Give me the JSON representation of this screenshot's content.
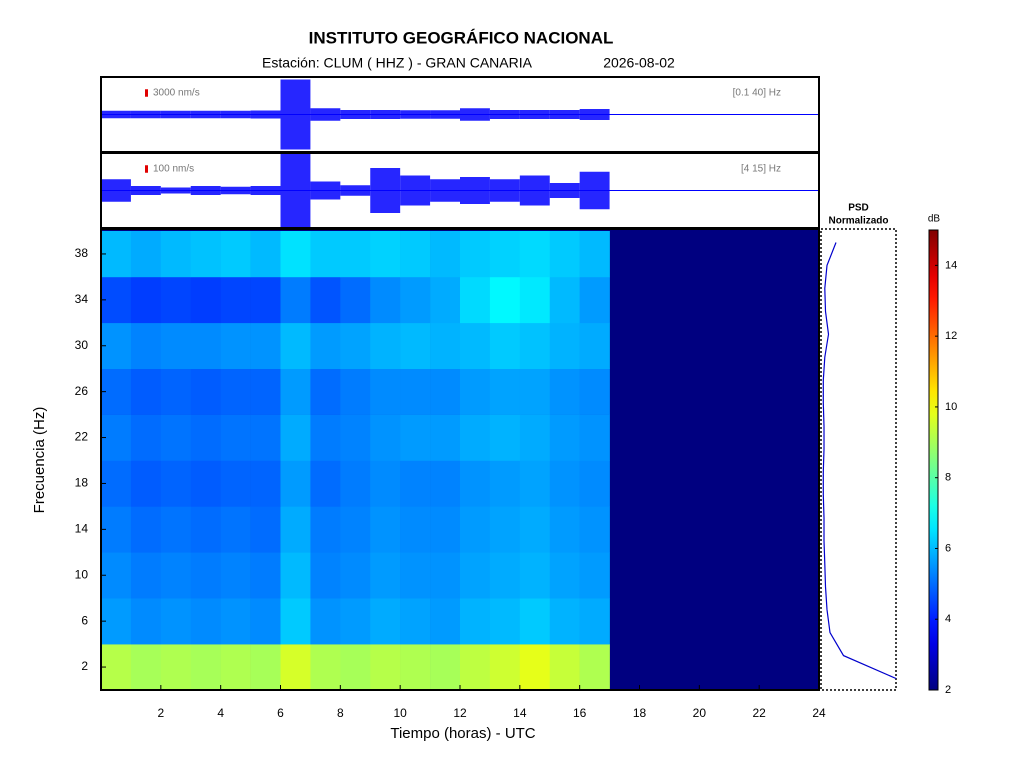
{
  "title": "INSTITUTO GEOGRÁFICO NACIONAL",
  "subtitle": "Estación:  CLUM ( HHZ ) - GRAN CANARIA",
  "date": "2026-08-02",
  "chart_data": [
    {
      "type": "seismogram",
      "scale": {
        "value": 3000,
        "label": "3000 nm/s"
      },
      "band": "[0.1 40] Hz",
      "color": "#0000ff",
      "xlim": [
        0,
        24
      ],
      "ylim": [
        -15000,
        15000
      ],
      "x": [
        0.5,
        1.5,
        2.5,
        3.5,
        4.5,
        5.5,
        6.5,
        7.5,
        8.5,
        9.5,
        10.5,
        11.5,
        12.5,
        13.5,
        14.5,
        15.5,
        16.5,
        17.5,
        18.5,
        19.5,
        20.5,
        21.5,
        22.5,
        23.5
      ],
      "values": [
        1500,
        1500,
        1500,
        1500,
        1500,
        1600,
        14000,
        2500,
        1800,
        1800,
        1700,
        1700,
        2500,
        1800,
        1800,
        1800,
        2200,
        null,
        null,
        null,
        null,
        null,
        null,
        null
      ]
    },
    {
      "type": "seismogram",
      "scale": {
        "value": 100,
        "label": "100 nm/s"
      },
      "band": "[4 15] Hz",
      "color": "#0000ff",
      "xlim": [
        0,
        24
      ],
      "ylim": [
        -500,
        500
      ],
      "x": [
        0.5,
        1.5,
        2.5,
        3.5,
        4.5,
        5.5,
        6.5,
        7.5,
        8.5,
        9.5,
        10.5,
        11.5,
        12.5,
        13.5,
        14.5,
        15.5,
        16.5,
        17.5,
        18.5,
        19.5,
        20.5,
        21.5,
        22.5,
        23.5
      ],
      "values": [
        150,
        60,
        40,
        60,
        50,
        60,
        500,
        120,
        70,
        300,
        200,
        150,
        180,
        150,
        200,
        100,
        250,
        null,
        null,
        null,
        null,
        null,
        null,
        null
      ]
    },
    {
      "type": "heatmap",
      "colormap": "jet",
      "xlabel": "Tiempo (horas) - UTC",
      "ylabel": "Frecuencia  (Hz)",
      "xlim": [
        0,
        24
      ],
      "ylim": [
        0,
        40
      ],
      "xticks": [
        2,
        4,
        6,
        8,
        10,
        12,
        14,
        16,
        18,
        20,
        22,
        24
      ],
      "yticks": [
        2,
        6,
        10,
        14,
        18,
        22,
        26,
        30,
        34,
        38
      ],
      "zlim": [
        2,
        15
      ],
      "zticks": [
        2,
        4,
        6,
        8,
        10,
        12,
        14
      ],
      "zlabel": "dB",
      "x": [
        0.5,
        1.5,
        2.5,
        3.5,
        4.5,
        5.5,
        6.5,
        7.5,
        8.5,
        9.5,
        10.5,
        11.5,
        12.5,
        13.5,
        14.5,
        15.5,
        16.5,
        17.5,
        18.5,
        19.5,
        20.5,
        21.5,
        22.5,
        23.5
      ],
      "y": [
        2,
        6,
        10,
        14,
        18,
        22,
        26,
        30,
        34,
        38
      ],
      "values": [
        [
          9.2,
          9.0,
          9.1,
          9.0,
          9.1,
          9.0,
          9.6,
          9.1,
          9.0,
          9.2,
          9.1,
          9.0,
          9.3,
          9.5,
          9.8,
          9.4,
          9.1,
          null,
          null,
          null,
          null,
          null,
          null,
          null
        ],
        [
          5.6,
          5.4,
          5.5,
          5.4,
          5.5,
          5.4,
          6.2,
          5.5,
          5.6,
          5.8,
          5.7,
          5.6,
          5.9,
          6.0,
          6.2,
          5.9,
          5.8,
          null,
          null,
          null,
          null,
          null,
          null,
          null
        ],
        [
          5.4,
          5.2,
          5.3,
          5.2,
          5.3,
          5.2,
          6.0,
          5.3,
          5.4,
          5.6,
          5.5,
          5.5,
          5.7,
          5.8,
          5.9,
          5.7,
          5.6,
          null,
          null,
          null,
          null,
          null,
          null,
          null
        ],
        [
          5.2,
          5.0,
          5.1,
          5.0,
          5.1,
          5.0,
          5.8,
          5.2,
          5.3,
          5.5,
          5.4,
          5.4,
          5.6,
          5.7,
          5.8,
          5.6,
          5.5,
          null,
          null,
          null,
          null,
          null,
          null,
          null
        ],
        [
          5.0,
          4.8,
          4.9,
          4.8,
          4.9,
          4.9,
          5.6,
          5.0,
          5.2,
          5.4,
          5.3,
          5.3,
          5.5,
          5.6,
          5.7,
          5.5,
          5.4,
          null,
          null,
          null,
          null,
          null,
          null,
          null
        ],
        [
          5.2,
          5.0,
          5.1,
          5.0,
          5.1,
          5.1,
          5.8,
          5.2,
          5.3,
          5.5,
          5.6,
          5.6,
          5.8,
          5.9,
          5.8,
          5.6,
          5.5,
          null,
          null,
          null,
          null,
          null,
          null,
          null
        ],
        [
          5.0,
          4.8,
          4.9,
          4.8,
          4.9,
          4.9,
          5.6,
          5.0,
          5.2,
          5.4,
          5.4,
          5.4,
          5.6,
          5.7,
          5.7,
          5.5,
          5.4,
          null,
          null,
          null,
          null,
          null,
          null,
          null
        ],
        [
          5.5,
          5.3,
          5.4,
          5.4,
          5.5,
          5.5,
          6.0,
          5.6,
          5.7,
          5.9,
          6.0,
          5.9,
          6.0,
          6.2,
          6.1,
          5.9,
          5.8,
          null,
          null,
          null,
          null,
          null,
          null,
          null
        ],
        [
          4.6,
          4.4,
          4.5,
          4.4,
          4.5,
          4.5,
          5.2,
          4.7,
          5.0,
          5.4,
          5.6,
          5.8,
          6.4,
          6.8,
          6.6,
          6.0,
          5.6,
          null,
          null,
          null,
          null,
          null,
          null,
          null
        ],
        [
          6.0,
          5.8,
          6.0,
          6.1,
          6.2,
          6.0,
          6.5,
          6.2,
          6.2,
          6.3,
          6.2,
          6.0,
          6.2,
          6.3,
          6.4,
          6.2,
          6.0,
          null,
          null,
          null,
          null,
          null,
          null,
          null
        ]
      ]
    },
    {
      "type": "psd",
      "title_lines": [
        "PSD",
        "Normalizado"
      ],
      "color": "#0000cc",
      "xlim": [
        0,
        1
      ],
      "ylim": [
        0,
        40
      ],
      "y": [
        1,
        3,
        5,
        7,
        9,
        11,
        13,
        15,
        17,
        19,
        21,
        23,
        25,
        27,
        29,
        31,
        33,
        35,
        37,
        39
      ],
      "values": [
        1.0,
        0.3,
        0.12,
        0.08,
        0.06,
        0.05,
        0.04,
        0.04,
        0.03,
        0.03,
        0.04,
        0.04,
        0.03,
        0.03,
        0.05,
        0.1,
        0.06,
        0.05,
        0.08,
        0.2
      ]
    }
  ]
}
